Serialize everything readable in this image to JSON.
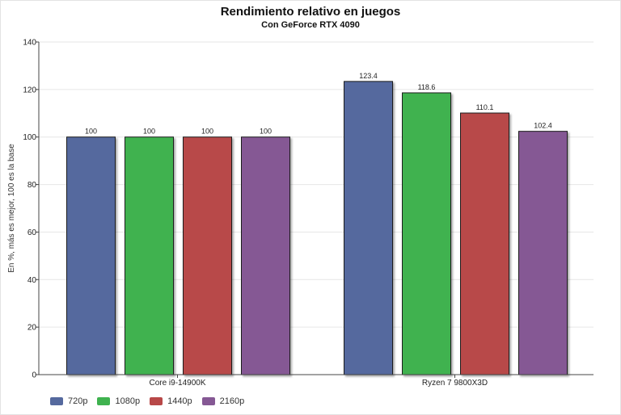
{
  "chart_data": {
    "type": "bar",
    "title": "Rendimiento relativo en juegos",
    "subtitle": "Con GeForce RTX 4090",
    "xlabel": "",
    "ylabel": "En %, más es mejor, 100 es la base",
    "ylim": [
      0,
      140
    ],
    "yticks": [
      0,
      20,
      40,
      60,
      80,
      100,
      120,
      140
    ],
    "categories": [
      "Core i9-14900K",
      "Ryzen 7 9800X3D"
    ],
    "series": [
      {
        "name": "720p",
        "color": "#55699e",
        "values": [
          100,
          123.4
        ]
      },
      {
        "name": "1080p",
        "color": "#3fb24f",
        "values": [
          100,
          118.6
        ]
      },
      {
        "name": "1440p",
        "color": "#b84848",
        "values": [
          100,
          110.1
        ]
      },
      {
        "name": "2160p",
        "color": "#855894",
        "values": [
          100,
          102.4
        ]
      }
    ],
    "data_labels": [
      [
        "100",
        "100",
        "100",
        "100"
      ],
      [
        "123.4",
        "118.6",
        "110.1",
        "102.4"
      ]
    ],
    "grid": true,
    "legend_position": "bottom-left"
  }
}
